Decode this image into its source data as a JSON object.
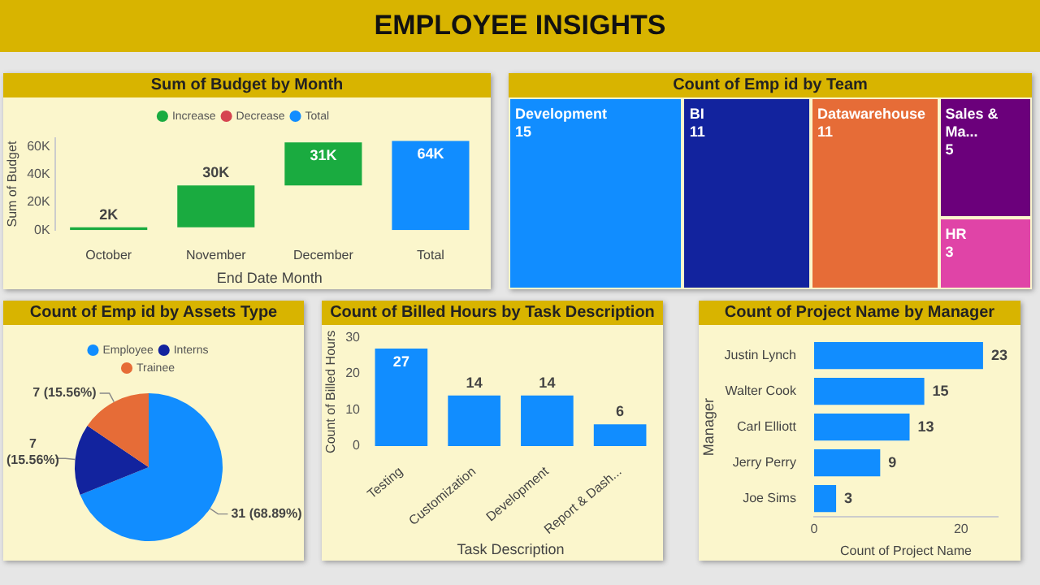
{
  "chart_data": [
    {
      "type": "other",
      "title": "EMPLOYEE INSIGHTS"
    },
    {
      "type": "bar",
      "title": "Sum of Budget by Month",
      "xlabel": "End Date Month",
      "ylabel": "Sum of Budget",
      "categories": [
        "October",
        "November",
        "December",
        "Total"
      ],
      "series": [
        {
          "name": "Increase",
          "color": "#1aab40",
          "values": [
            2000,
            30000,
            31000,
            null
          ],
          "base": [
            0,
            2000,
            32000,
            null
          ],
          "value_labels": [
            "2K",
            "30K",
            "31K",
            null
          ]
        },
        {
          "name": "Decrease",
          "color": "#d64550",
          "values": [
            null,
            null,
            null,
            null
          ]
        },
        {
          "name": "Total",
          "color": "#118dff",
          "values": [
            null,
            null,
            null,
            64000
          ],
          "base": [
            null,
            null,
            null,
            0
          ],
          "value_labels": [
            null,
            null,
            null,
            "64K"
          ]
        }
      ],
      "ylim": [
        0,
        66000
      ],
      "yticks": [
        {
          "value": 0,
          "label": "0K"
        },
        {
          "value": 20000,
          "label": "20K"
        },
        {
          "value": 40000,
          "label": "40K"
        },
        {
          "value": 60000,
          "label": "60K"
        }
      ],
      "legend": "top"
    },
    {
      "type": "other",
      "title": "Count of Emp id by Team",
      "categories": [
        "Development",
        "BI",
        "Datawarehouse",
        "Sales & Ma...",
        "HR"
      ],
      "values": [
        15,
        11,
        11,
        5,
        3
      ],
      "colors": [
        "#118dff",
        "#12239e",
        "#e66c37",
        "#6b007b",
        "#e044a7"
      ],
      "data_labels": true
    },
    {
      "type": "pie",
      "title": "Count of Emp id by Assets Type",
      "categories": [
        "Employee",
        "Interns",
        "Trainee"
      ],
      "values": [
        31,
        7,
        7
      ],
      "colors": [
        "#118dff",
        "#12239e",
        "#e66c37"
      ],
      "value_labels": [
        "31 (68.89%)",
        "7 (15.56%)",
        "7 (15.56%)"
      ],
      "legend": "top"
    },
    {
      "type": "bar",
      "title": "Count of Billed Hours by Task Description",
      "xlabel": "Task Description",
      "ylabel": "Count of Billed Hours",
      "categories": [
        "Testing",
        "Customization",
        "Development",
        "Report & Dash..."
      ],
      "values": [
        27,
        14,
        14,
        6
      ],
      "color": "#118dff",
      "ylim": [
        0,
        30
      ],
      "yticks": [
        0,
        10,
        20,
        30
      ],
      "data_labels": true
    },
    {
      "type": "bar",
      "orientation": "horizontal",
      "title": "Count of Project Name by Manager",
      "xlabel": "Count of Project Name",
      "ylabel": "Manager",
      "categories": [
        "Justin Lynch",
        "Walter Cook",
        "Carl Elliott",
        "Jerry Perry",
        "Joe Sims"
      ],
      "values": [
        23,
        15,
        13,
        9,
        3
      ],
      "color": "#118dff",
      "xlim": [
        0,
        25
      ],
      "xticks": [
        0,
        20
      ],
      "data_labels": true
    }
  ]
}
